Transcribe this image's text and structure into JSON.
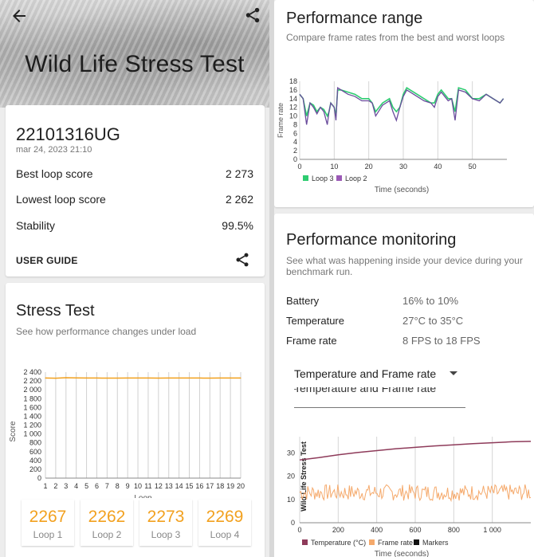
{
  "hero": {
    "title": "Wild Life Stress Test"
  },
  "result": {
    "device": "22101316UG",
    "date": "mar 24, 2023 21:10",
    "best_label": "Best loop score",
    "best_value": "2 273",
    "lowest_label": "Lowest loop score",
    "lowest_value": "2 262",
    "stability_label": "Stability",
    "stability_value": "99.5%",
    "guide_label": "USER GUIDE"
  },
  "stress": {
    "title": "Stress Test",
    "subtitle": "See how performance changes under load",
    "loops": [
      {
        "value": "2267",
        "label": "Loop 1"
      },
      {
        "value": "2262",
        "label": "Loop 2"
      },
      {
        "value": "2273",
        "label": "Loop 3"
      },
      {
        "value": "2269",
        "label": "Loop 4"
      }
    ]
  },
  "range": {
    "title": "Performance range",
    "subtitle": "Compare frame rates from the best and worst loops"
  },
  "monitoring": {
    "title": "Performance monitoring",
    "subtitle": "See what was happening inside your device during your benchmark run.",
    "battery_label": "Battery",
    "battery_value": "16% to 10%",
    "temp_label": "Temperature",
    "temp_value": "27°C to 35°C",
    "fr_label": "Frame rate",
    "fr_value": "8 FPS to 18 FPS",
    "dropdown_value": "Temperature and Frame rate"
  },
  "colors": {
    "accent": "#f2a11f",
    "loop3": "#2ecc71",
    "loop2": "#9b59b6",
    "temp": "#8e3b5a",
    "framerate": "#f5a96b"
  },
  "chart_data": [
    {
      "type": "line",
      "title": "",
      "xlabel": "Loop",
      "ylabel": "Score",
      "x": [
        1,
        2,
        3,
        4,
        5,
        6,
        7,
        8,
        9,
        10,
        11,
        12,
        13,
        14,
        15,
        16,
        17,
        18,
        19,
        20
      ],
      "series": [
        {
          "values": [
            2267,
            2262,
            2273,
            2269,
            2268,
            2266,
            2265,
            2264,
            2266,
            2267,
            2266,
            2265,
            2266,
            2268,
            2267,
            2266,
            2265,
            2266,
            2267,
            2266
          ]
        }
      ],
      "ylim": [
        0,
        2400
      ],
      "yticks": [
        "0",
        "200",
        "400",
        "600",
        "800",
        "1 000",
        "1 200",
        "1 400",
        "1 600",
        "1 800",
        "2 000",
        "2 200",
        "2 400"
      ],
      "xticks": [
        "1",
        "2",
        "3",
        "4",
        "5",
        "6",
        "7",
        "8",
        "9",
        "10",
        "11",
        "12",
        "13",
        "14",
        "15",
        "16",
        "17",
        "18",
        "19",
        "20"
      ],
      "grid": "vertical"
    },
    {
      "type": "line",
      "title": "",
      "xlabel": "Time (seconds)",
      "ylabel": "Frame rate",
      "xlim": [
        0,
        60
      ],
      "ylim": [
        0,
        18
      ],
      "xticks": [
        "0",
        "10",
        "20",
        "30",
        "40",
        "50"
      ],
      "yticks": [
        "0",
        "2",
        "4",
        "6",
        "8",
        "10",
        "12",
        "14",
        "16",
        "18"
      ],
      "legend": "bottom",
      "series": [
        {
          "name": "Loop 3",
          "x": [
            0,
            1,
            2,
            3,
            4,
            5,
            6,
            7,
            8,
            8.5,
            9,
            10,
            10.5,
            11,
            12,
            14,
            16,
            18,
            20,
            21,
            22,
            24,
            26,
            27,
            28,
            29,
            30,
            31,
            32,
            34,
            36,
            38,
            39,
            40,
            41,
            42,
            43,
            44,
            45,
            46,
            48,
            50,
            52,
            54,
            56,
            58,
            59
          ],
          "values": [
            15,
            14,
            10,
            13,
            12.5,
            11,
            12,
            11.5,
            10,
            11,
            13,
            12,
            10,
            16,
            16,
            15.5,
            15,
            14,
            14,
            13,
            11,
            13,
            14,
            12,
            11,
            12,
            15,
            16.5,
            16,
            15,
            14,
            13,
            13,
            15,
            16,
            15,
            14,
            14,
            11,
            16.5,
            16,
            14,
            14,
            15,
            14,
            13,
            14
          ]
        },
        {
          "name": "Loop 2",
          "x": [
            0,
            1,
            2,
            3,
            4,
            5,
            6,
            7,
            8,
            8.5,
            9,
            10,
            10.5,
            11,
            12,
            14,
            16,
            18,
            20,
            21,
            22,
            24,
            26,
            27,
            28,
            29,
            30,
            31,
            32,
            34,
            36,
            38,
            39,
            40,
            41,
            42,
            43,
            44,
            45,
            46,
            48,
            50,
            52,
            54,
            56,
            58,
            59
          ],
          "values": [
            15,
            14,
            8,
            13,
            12,
            10.5,
            12,
            11,
            8,
            11,
            13,
            12,
            9,
            16.5,
            16,
            15,
            14.5,
            13.5,
            13.5,
            13,
            10,
            12.5,
            13.5,
            11,
            9,
            12,
            14.5,
            16,
            15.5,
            14.5,
            13.5,
            13,
            12,
            14.5,
            15.5,
            14.5,
            13.5,
            14,
            9,
            16,
            15.5,
            14,
            13.5,
            15,
            14,
            13,
            14
          ]
        }
      ]
    },
    {
      "type": "line",
      "title": "",
      "xlabel": "Time (seconds)",
      "ylabel": "Wild Life Stress Test",
      "xlim": [
        0,
        1200
      ],
      "ylim": [
        0,
        37
      ],
      "xticks": [
        "0",
        "200",
        "400",
        "600",
        "800",
        "1 000"
      ],
      "yticks": [
        "0",
        "10",
        "20",
        "30"
      ],
      "legend": "bottom",
      "legend_entries": [
        "Temperature (°C)",
        "Frame rate",
        "Markers"
      ],
      "series": [
        {
          "name": "Temperature (°C)",
          "x": [
            0,
            100,
            200,
            300,
            400,
            500,
            600,
            700,
            800,
            900,
            1000,
            1100,
            1200
          ],
          "values": [
            27,
            28,
            29.2,
            30.2,
            31,
            31.8,
            32.4,
            33,
            33.5,
            34,
            34.4,
            34.8,
            35
          ]
        },
        {
          "name": "Frame rate",
          "x": [
            0,
            1200
          ],
          "values": [
            13,
            13
          ],
          "range": [
            8,
            18
          ]
        }
      ]
    }
  ]
}
